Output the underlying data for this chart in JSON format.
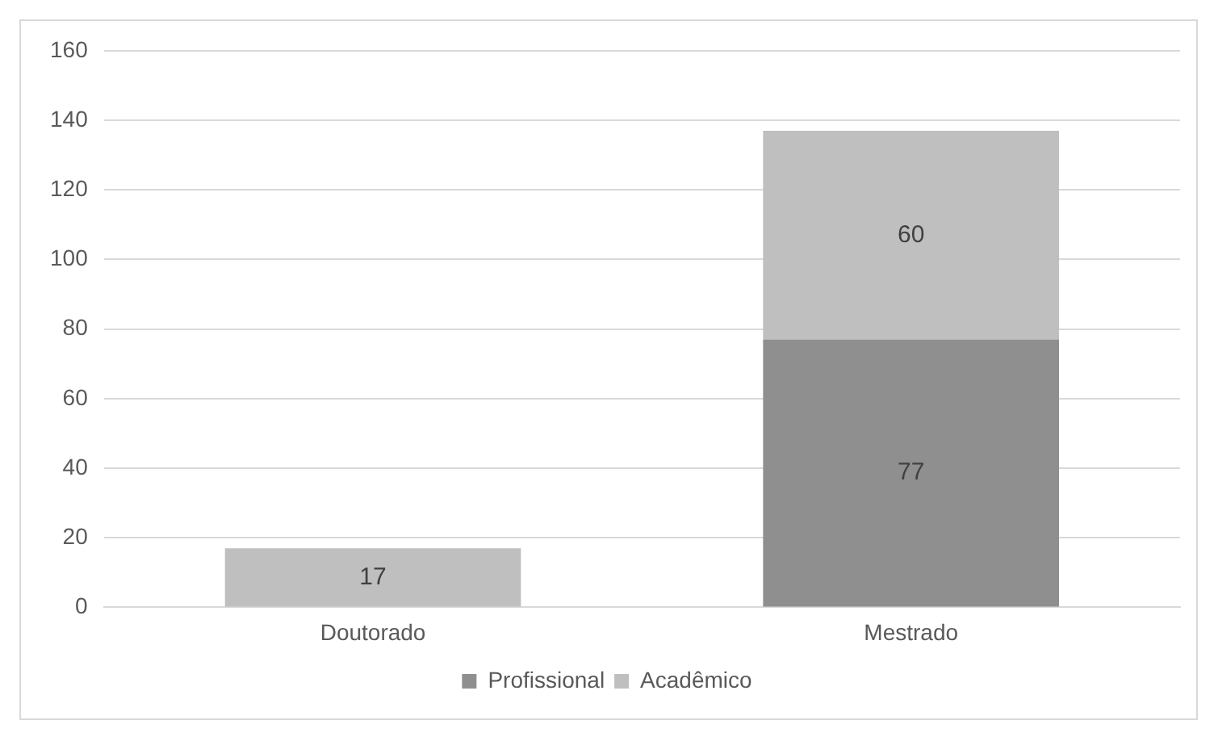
{
  "chart_data": {
    "type": "bar",
    "stacked": true,
    "categories": [
      "Doutorado",
      "Mestrado"
    ],
    "series": [
      {
        "name": "Profissional",
        "color": "#8f8f8f",
        "values": [
          null,
          77
        ]
      },
      {
        "name": "Acadêmico",
        "color": "#bfbfbf",
        "values": [
          17,
          60
        ]
      }
    ],
    "ylim": [
      0,
      160
    ],
    "yticks": [
      0,
      20,
      40,
      60,
      80,
      100,
      120,
      140,
      160
    ],
    "grid": "y",
    "legend": "bottom",
    "data_labels": true
  }
}
